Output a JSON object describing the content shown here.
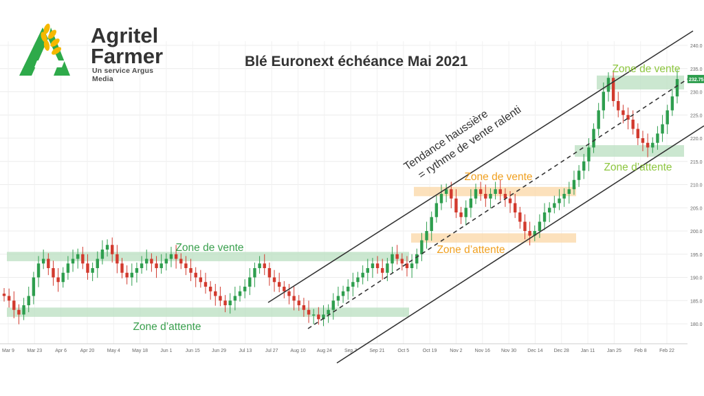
{
  "logo": {
    "line1": "Agritel",
    "line2": "Farmer",
    "tagline": "Un service Argus Media",
    "icon": "wheat-a-icon",
    "colors": {
      "green": "#2eaa4a",
      "yellow": "#f5b800"
    }
  },
  "title": "Blé Euronext échéance Mai 2021",
  "chart_data": {
    "type": "candlestick",
    "title": "Blé Euronext échéance Mai 2021",
    "ylim": [
      176,
      241
    ],
    "yticks": [
      180,
      185,
      190,
      195,
      200,
      205,
      210,
      215,
      220,
      225,
      230,
      235,
      240
    ],
    "x_tick_labels": [
      "Mar 9",
      "Mar 23",
      "Apr 6",
      "Apr 20",
      "May 4",
      "May 18",
      "Jun 1",
      "Jun 15",
      "Jun 29",
      "Jul 13",
      "Jul 27",
      "Aug 10",
      "Aug 24",
      "Sep 7",
      "Sep 21",
      "Oct 5",
      "Oct 19",
      "Nov 2",
      "Nov 16",
      "Nov 30",
      "Dec 14",
      "Dec 28",
      "Jan 11",
      "Jan 25",
      "Feb 8",
      "Feb 22"
    ],
    "last_price_label": "232.75",
    "grid": true,
    "colors": {
      "up": "#2e9e4e",
      "down": "#d23a2e",
      "sell_zone": "#b9dfc0",
      "wait_zone": "#b9dfc0",
      "orange_zone": "#fbd7a6",
      "channel": "#333333"
    },
    "closes": [
      186,
      185,
      183,
      182,
      184,
      186,
      190,
      193,
      194,
      192,
      190,
      189,
      191,
      193,
      194,
      195,
      193,
      191,
      192,
      194,
      196,
      197,
      195,
      193,
      191,
      190,
      191,
      192,
      193,
      194,
      193,
      192,
      193,
      194,
      195,
      194,
      193,
      192,
      191,
      190,
      189,
      188,
      187,
      186,
      185,
      184,
      185,
      186,
      187,
      188,
      190,
      192,
      193,
      192,
      190,
      189,
      188,
      187,
      186,
      185,
      184,
      183,
      182,
      182,
      181,
      182,
      183,
      185,
      186,
      187,
      188,
      189,
      190,
      191,
      192,
      193,
      192,
      191,
      193,
      195,
      194,
      193,
      192,
      193,
      195,
      198,
      200,
      203,
      206,
      208,
      209,
      207,
      204,
      203,
      205,
      207,
      209,
      208,
      207,
      208,
      209,
      208,
      207,
      206,
      204,
      202,
      200,
      199,
      200,
      202,
      204,
      205,
      206,
      207,
      208,
      209,
      211,
      213,
      215,
      218,
      222,
      226,
      230,
      233,
      228,
      226,
      225,
      224,
      222,
      220,
      219,
      218,
      219,
      221,
      223,
      226,
      229,
      232.75
    ],
    "zones": [
      {
        "label": "Zone de vente",
        "kind": "sell",
        "y_range": [
          193.5,
          195.5
        ],
        "label_color": "#3aa04e"
      },
      {
        "label": "Zone d’attente",
        "kind": "wait",
        "y_range": [
          181.5,
          183.5
        ],
        "label_color": "#3aa04e"
      },
      {
        "label": "Zone de vente",
        "kind": "sell",
        "y_range": [
          207.5,
          209.5
        ],
        "label_color": "#f0a020"
      },
      {
        "label": "Zone d’attente",
        "kind": "wait",
        "y_range": [
          197.5,
          199.5
        ],
        "label_color": "#f0a020"
      },
      {
        "label": "Zone de vente",
        "kind": "sell",
        "y_range": [
          230.5,
          233.5
        ],
        "label_color": "#8dc63f"
      },
      {
        "label": "Zone d’attente",
        "kind": "wait",
        "y_range": [
          216,
          218.5
        ],
        "label_color": "#8dc63f"
      }
    ],
    "annotation": [
      "Tendance haussière",
      "= rythme de vente ralenti"
    ]
  }
}
